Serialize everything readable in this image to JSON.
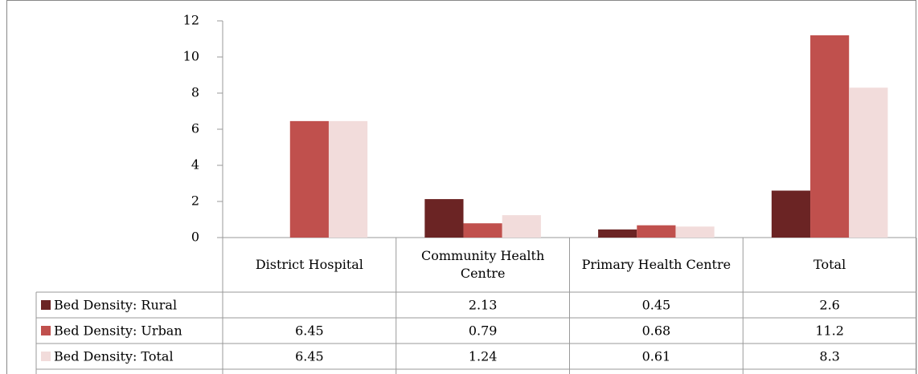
{
  "chart_data": {
    "type": "bar",
    "categories": [
      "District Hospital",
      "Community Health Centre",
      "Primary Health Centre",
      "Total"
    ],
    "series": [
      {
        "name": "Bed Density: Rural",
        "color": "#6b2424",
        "values": [
          null,
          2.13,
          0.45,
          2.6
        ]
      },
      {
        "name": "Bed Density: Urban",
        "color": "#c0504d",
        "values": [
          6.45,
          0.79,
          0.68,
          11.2
        ]
      },
      {
        "name": "Bed Density: Total",
        "color": "#f2dcdb",
        "values": [
          6.45,
          1.24,
          0.61,
          8.3
        ]
      }
    ],
    "ylim": [
      0,
      12
    ],
    "yticks": [
      0,
      2,
      4,
      6,
      8,
      10,
      12
    ],
    "data_table": true
  }
}
